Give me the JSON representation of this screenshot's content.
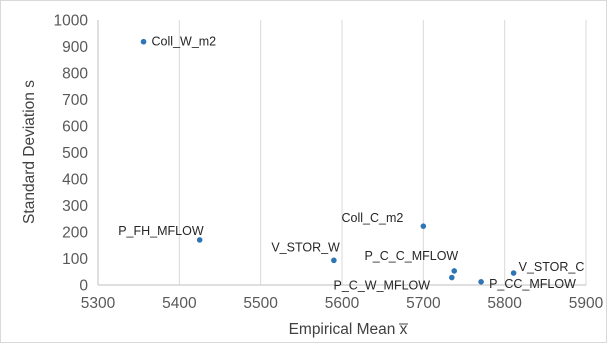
{
  "chart_data": {
    "type": "scatter",
    "xlabel": "Empirical Mean x̅",
    "ylabel": "Standard Deviation s",
    "xlim": [
      5300,
      5900
    ],
    "ylim": [
      0,
      1000
    ],
    "x_ticks": [
      "5300",
      "5400",
      "5500",
      "5600",
      "5700",
      "5800",
      "5900"
    ],
    "y_ticks": [
      "0",
      "100",
      "200",
      "300",
      "400",
      "500",
      "600",
      "700",
      "800",
      "900",
      "1000"
    ],
    "grid": "vertical",
    "marker_color": "#2e75b6",
    "points": [
      {
        "label": "Coll_W_m2",
        "x": 5356,
        "y": 918
      },
      {
        "label": "P_FH_MFLOW",
        "x": 5425,
        "y": 170
      },
      {
        "label": "V_STOR_W",
        "x": 5590,
        "y": 93
      },
      {
        "label": "Coll_C_m2",
        "x": 5700,
        "y": 222
      },
      {
        "label": "P_C_C_MFLOW",
        "x": 5738,
        "y": 53
      },
      {
        "label": "P_C_W_MFLOW",
        "x": 5735,
        "y": 28
      },
      {
        "label": "P_CC_MFLOW",
        "x": 5771,
        "y": 12
      },
      {
        "label": "V_STOR_C",
        "x": 5811,
        "y": 45
      }
    ]
  }
}
